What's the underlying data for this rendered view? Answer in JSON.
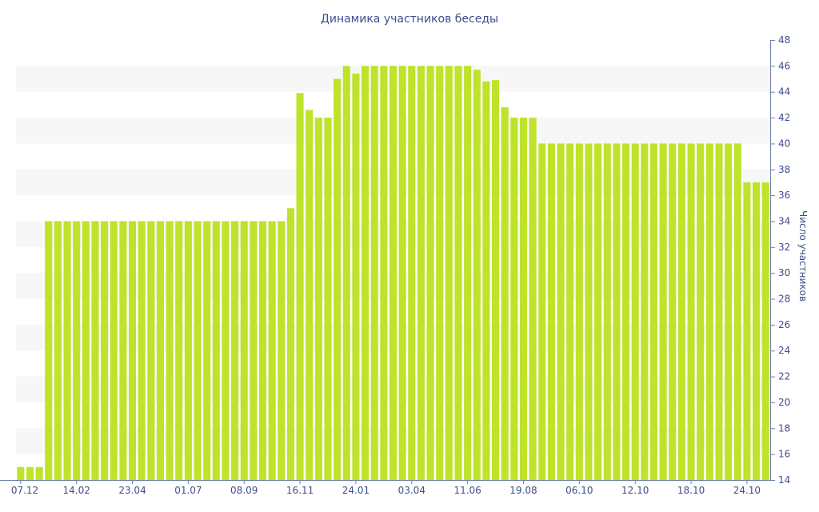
{
  "chart_data": {
    "type": "bar",
    "title": "Динамика участников беседы",
    "ylabel": "Число участников",
    "xlabel": "",
    "ylim": [
      14,
      48
    ],
    "y_ticks": [
      14,
      16,
      18,
      20,
      22,
      24,
      26,
      28,
      30,
      32,
      34,
      36,
      38,
      40,
      42,
      44,
      46,
      48
    ],
    "y_axis_position": "right",
    "grid": "alternating horizontal bands",
    "bar_color": "#bee32a",
    "x_tick_labels": [
      {
        "label": "07.12",
        "index": 0
      },
      {
        "label": "14.02",
        "index": 6
      },
      {
        "label": "23.04",
        "index": 12
      },
      {
        "label": "01.07",
        "index": 18
      },
      {
        "label": "08.09",
        "index": 24
      },
      {
        "label": "16.11",
        "index": 30
      },
      {
        "label": "24.01",
        "index": 36
      },
      {
        "label": "03.04",
        "index": 42
      },
      {
        "label": "11.06",
        "index": 48
      },
      {
        "label": "19.08",
        "index": 54
      },
      {
        "label": "06.10",
        "index": 60
      },
      {
        "label": "12.10",
        "index": 66
      },
      {
        "label": "18.10",
        "index": 72
      },
      {
        "label": "24.10",
        "index": 78
      }
    ],
    "values": [
      15,
      15,
      15,
      34,
      34,
      34,
      34,
      34,
      34,
      34,
      34,
      34,
      34,
      34,
      34,
      34,
      34,
      34,
      34,
      34,
      34,
      34,
      34,
      34,
      34,
      34,
      34,
      34,
      34,
      35,
      43.9,
      42.6,
      42,
      42,
      45,
      46,
      45.4,
      46,
      46,
      46,
      46,
      46,
      46,
      46,
      46,
      46,
      46,
      46,
      46,
      45.7,
      44.8,
      44.9,
      42.8,
      42,
      42,
      42,
      40,
      40,
      40,
      40,
      40,
      40,
      40,
      40,
      40,
      40,
      40,
      40,
      40,
      40,
      40,
      40,
      40,
      40,
      40,
      40,
      40,
      40,
      37,
      37,
      37
    ]
  }
}
